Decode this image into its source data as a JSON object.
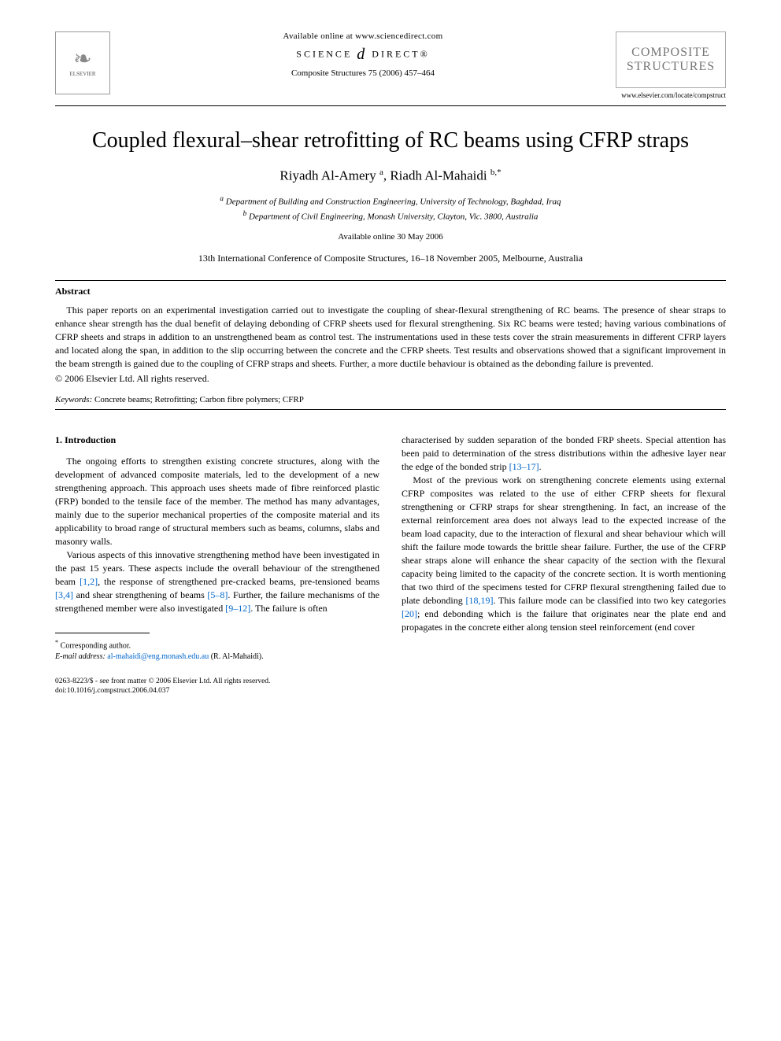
{
  "header": {
    "available_online": "Available online at www.sciencedirect.com",
    "science_direct_left": "SCIENCE",
    "science_direct_right": "DIRECT®",
    "journal_ref": "Composite Structures 75 (2006) 457–464",
    "elsevier_label": "ELSEVIER",
    "cover_line1": "COMPOSITE",
    "cover_line2": "STRUCTURES",
    "journal_url": "www.elsevier.com/locate/compstruct"
  },
  "title": "Coupled flexural–shear retrofitting of RC beams using CFRP straps",
  "authors": {
    "a1_name": "Riyadh Al-Amery ",
    "a1_aff": "a",
    "sep": ", ",
    "a2_name": "Riadh Al-Mahaidi ",
    "a2_aff": "b,",
    "a2_corr": "*"
  },
  "affiliations": {
    "a": "Department of Building and Construction Engineering, University of Technology, Baghdad, Iraq",
    "b": "Department of Civil Engineering, Monash University, Clayton, Vic. 3800, Australia"
  },
  "available_date": "Available online 30 May 2006",
  "conference": "13th International Conference of Composite Structures, 16–18 November 2005, Melbourne, Australia",
  "abstract": {
    "label": "Abstract",
    "body": "This paper reports on an experimental investigation carried out to investigate the coupling of shear-flexural strengthening of RC beams. The presence of shear straps to enhance shear strength has the dual benefit of delaying debonding of CFRP sheets used for flexural strengthening. Six RC beams were tested; having various combinations of CFRP sheets and straps in addition to an unstrengthened beam as control test. The instrumentations used in these tests cover the strain measurements in different CFRP layers and located along the span, in addition to the slip occurring between the concrete and the CFRP sheets. Test results and observations showed that a significant improvement in the beam strength is gained due to the coupling of CFRP straps and sheets. Further, a more ductile behaviour is obtained as the debonding failure is prevented.",
    "copyright": "© 2006 Elsevier Ltd. All rights reserved."
  },
  "keywords": {
    "label": "Keywords:",
    "text": " Concrete beams; Retrofitting; Carbon fibre polymers; CFRP"
  },
  "intro": {
    "heading": "1. Introduction",
    "left_p1": "The ongoing efforts to strengthen existing concrete structures, along with the development of advanced composite materials, led to the development of a new strengthening approach. This approach uses sheets made of fibre reinforced plastic (FRP) bonded to the tensile face of the member. The method has many advantages, mainly due to the superior mechanical properties of the composite material and its applicability to broad range of structural members such as beams, columns, slabs and masonry walls.",
    "left_p2a": "Various aspects of this innovative strengthening method have been investigated in the past 15 years. These aspects include the overall behaviour of the strengthened beam ",
    "ref12": "[1,2]",
    "left_p2b": ", the response of strengthened pre-cracked beams, pre-tensioned beams ",
    "ref34": "[3,4]",
    "left_p2c": " and shear strengthening of beams ",
    "ref58": "[5–8]",
    "left_p2d": ". Further, the failure mechanisms of the strengthened member were also investigated ",
    "ref912": "[9–12]",
    "left_p2e": ". The failure is often ",
    "right_p1a": "characterised by sudden separation of the bonded FRP sheets. Special attention has been paid to determination of the stress distributions within the adhesive layer near the edge of the bonded strip ",
    "ref1317": "[13–17]",
    "right_p1b": ".",
    "right_p2a": "Most of the previous work on strengthening concrete elements using external CFRP composites was related to the use of either CFRP sheets for flexural strengthening or CFRP straps for shear strengthening. In fact, an increase of the external reinforcement area does not always lead to the expected increase of the beam load capacity, due to the interaction of flexural and shear behaviour which will shift the failure mode towards the brittle shear failure. Further, the use of the CFRP shear straps alone will enhance the shear capacity of the section with the flexural capacity being limited to the capacity of the concrete section. It is worth mentioning that two third of the specimens tested for CFRP flexural strengthening failed due to plate debonding ",
    "ref1819": "[18,19]",
    "right_p2b": ". This failure mode can be classified into two key categories ",
    "ref20": "[20]",
    "right_p2c": "; end debonding which is the failure that originates near the plate end and propagates in the concrete either along tension steel reinforcement (end cover"
  },
  "footnote": {
    "corr": "Corresponding author.",
    "email_label": "E-mail address:",
    "email": "al-mahaidi@eng.monash.edu.au",
    "email_suffix": " (R. Al-Mahaidi)."
  },
  "footer": {
    "line1": "0263-8223/$ - see front matter © 2006 Elsevier Ltd. All rights reserved.",
    "line2": "doi:10.1016/j.compstruct.2006.04.037"
  },
  "colors": {
    "link": "#0066cc",
    "text": "#000000",
    "bg": "#ffffff",
    "logo_gray": "#888888"
  }
}
